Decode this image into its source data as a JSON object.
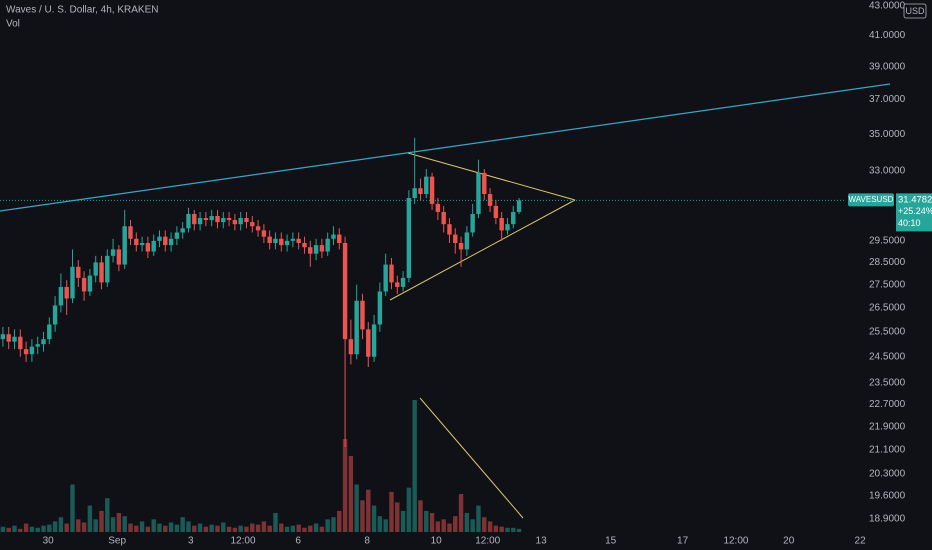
{
  "chart_data": {
    "type": "candlestick",
    "title": "Waves / U. S. Dollar, 4h, KRAKEN",
    "volume_label": "Vol",
    "currency": "USD",
    "symbol": "WAVESUSD",
    "change_label": "+25.24%",
    "countdown": "40:10",
    "log_scale": true,
    "grid": false,
    "up_color": "#26a69a",
    "down_color": "#ef5350",
    "ylim": [
      18.5,
      43.4
    ],
    "yticks": [
      {
        "value": 43,
        "label": "43.0000"
      },
      {
        "value": 41,
        "label": "41.0000"
      },
      {
        "value": 39,
        "label": "39.0000"
      },
      {
        "value": 37,
        "label": "37.0000"
      },
      {
        "value": 35,
        "label": "35.0000"
      },
      {
        "value": 33,
        "label": "33.0000"
      },
      {
        "value": 29.5,
        "label": "29.5000"
      },
      {
        "value": 28.5,
        "label": "28.5000"
      },
      {
        "value": 27.5,
        "label": "27.5000"
      },
      {
        "value": 26.5,
        "label": "26.5000"
      },
      {
        "value": 25.5,
        "label": "25.5000"
      },
      {
        "value": 24.5,
        "label": "24.5000"
      },
      {
        "value": 23.5,
        "label": "23.5000"
      },
      {
        "value": 22.7,
        "label": "22.7000"
      },
      {
        "value": 21.9,
        "label": "21.9000"
      },
      {
        "value": 21.1,
        "label": "21.1000"
      },
      {
        "value": 20.3,
        "label": "20.3000"
      },
      {
        "value": 19.6,
        "label": "19.6000"
      },
      {
        "value": 18.9,
        "label": "18.9000"
      }
    ],
    "xlim": [
      -0.5,
      145.2
    ],
    "xticks": [
      {
        "value": 7.8,
        "label": "30"
      },
      {
        "value": 19.7,
        "label": "Sep"
      },
      {
        "value": 32.4,
        "label": "3"
      },
      {
        "value": 41.4,
        "label": "12:00"
      },
      {
        "value": 50.9,
        "label": "6"
      },
      {
        "value": 62.8,
        "label": "8"
      },
      {
        "value": 74.7,
        "label": "10"
      },
      {
        "value": 83.6,
        "label": "12:00"
      },
      {
        "value": 92.8,
        "label": "13"
      },
      {
        "value": 104.8,
        "label": "15"
      },
      {
        "value": 117.2,
        "label": "17"
      },
      {
        "value": 126.4,
        "label": "12:00"
      },
      {
        "value": 135.5,
        "label": "20"
      },
      {
        "value": 147.8,
        "label": "22"
      }
    ],
    "open": [
      25.2,
      25.4,
      25.1,
      25.3,
      24.8,
      24.6,
      24.9,
      25.0,
      25.2,
      25.8,
      26.6,
      27.4,
      26.9,
      28.3,
      27.8,
      27.2,
      27.9,
      28.5,
      27.6,
      28.8,
      29.1,
      28.4,
      30.2,
      29.6,
      29.3,
      29.4,
      29.0,
      29.5,
      29.7,
      29.3,
      29.6,
      29.9,
      30.1,
      30.8,
      30.3,
      30.6,
      30.5,
      30.7,
      30.4,
      30.6,
      30.5,
      30.3,
      30.6,
      30.4,
      30.2,
      30.0,
      29.7,
      29.4,
      29.6,
      29.3,
      29.5,
      29.6,
      29.4,
      29.2,
      28.9,
      29.3,
      29.0,
      29.6,
      29.8,
      29.4,
      25.2,
      24.6,
      26.8,
      25.6,
      24.5,
      25.8,
      27.2,
      28.4,
      27.6,
      27.4,
      27.8,
      31.6,
      32.1,
      31.8,
      32.7,
      31.3,
      30.9,
      30.3,
      29.8,
      29.4,
      29.1,
      29.9,
      30.8,
      32.9,
      31.8,
      31.2,
      30.6,
      30.0,
      30.3,
      30.9
    ],
    "high": [
      25.7,
      25.7,
      25.6,
      25.6,
      25.1,
      25.2,
      25.3,
      25.5,
      26.1,
      27.0,
      28.0,
      27.7,
      29.1,
      28.6,
      28.1,
      28.2,
      28.8,
      28.8,
      29.1,
      29.6,
      29.3,
      31.0,
      30.5,
      29.9,
      29.7,
      29.7,
      29.8,
      30.0,
      30.0,
      29.9,
      30.2,
      30.4,
      31.1,
      31.0,
      30.9,
      30.9,
      31.0,
      31.0,
      30.9,
      30.9,
      30.8,
      30.9,
      30.9,
      30.7,
      30.5,
      30.3,
      30.0,
      29.9,
      29.9,
      29.8,
      29.9,
      29.9,
      29.7,
      29.5,
      29.6,
      29.6,
      29.9,
      30.2,
      30.1,
      29.7,
      26.0,
      27.5,
      27.1,
      25.9,
      26.2,
      27.6,
      28.9,
      28.7,
      27.9,
      28.1,
      32.0,
      34.8,
      32.6,
      33.1,
      32.9,
      31.6,
      31.2,
      30.6,
      30.1,
      29.7,
      30.2,
      31.3,
      33.6,
      33.1,
      32.1,
      31.5,
      30.9,
      30.6,
      31.2,
      31.6
    ],
    "low": [
      24.9,
      24.8,
      24.8,
      24.5,
      24.3,
      24.3,
      24.6,
      24.7,
      25.0,
      25.5,
      26.3,
      26.2,
      26.7,
      27.4,
      26.8,
      27.0,
      27.6,
      27.3,
      27.4,
      28.5,
      28.1,
      28.2,
      29.3,
      29.0,
      29.0,
      28.7,
      28.8,
      29.2,
      29.0,
      29.0,
      29.3,
      29.6,
      29.9,
      30.0,
      30.0,
      30.2,
      30.2,
      30.1,
      30.1,
      30.2,
      30.0,
      30.0,
      30.1,
      29.9,
      29.7,
      29.4,
      29.1,
      29.1,
      29.0,
      29.0,
      29.2,
      29.1,
      28.9,
      28.3,
      28.6,
      28.7,
      28.8,
      29.3,
      29.1,
      21.2,
      24.2,
      24.4,
      25.2,
      24.1,
      24.3,
      25.5,
      27.0,
      27.3,
      27.1,
      27.2,
      27.6,
      31.3,
      31.5,
      31.6,
      31.0,
      30.5,
      29.9,
      29.4,
      28.9,
      28.3,
      28.8,
      29.7,
      30.6,
      31.5,
      30.9,
      30.3,
      29.5,
      29.8,
      30.1,
      30.8
    ],
    "close": [
      25.4,
      25.1,
      25.3,
      24.8,
      24.6,
      24.9,
      25.0,
      25.2,
      25.8,
      26.6,
      27.4,
      26.9,
      28.3,
      27.8,
      27.2,
      27.9,
      28.5,
      27.6,
      28.8,
      29.1,
      28.4,
      30.2,
      29.6,
      29.3,
      29.4,
      29.0,
      29.5,
      29.7,
      29.3,
      29.6,
      29.9,
      30.1,
      30.8,
      30.3,
      30.6,
      30.5,
      30.7,
      30.4,
      30.6,
      30.5,
      30.3,
      30.6,
      30.4,
      30.2,
      30.0,
      29.7,
      29.4,
      29.6,
      29.3,
      29.5,
      29.6,
      29.4,
      29.2,
      28.9,
      29.3,
      29.0,
      29.6,
      29.8,
      29.4,
      25.2,
      24.6,
      26.8,
      25.6,
      24.5,
      25.8,
      27.2,
      28.4,
      27.6,
      27.4,
      27.8,
      31.6,
      32.1,
      31.8,
      32.7,
      31.3,
      30.9,
      30.3,
      29.8,
      29.4,
      29.1,
      29.9,
      30.8,
      32.9,
      31.8,
      31.2,
      30.6,
      30.0,
      30.3,
      30.9,
      31.4782
    ],
    "volume": [
      5,
      4,
      6,
      3,
      8,
      5,
      4,
      6,
      7,
      10,
      14,
      8,
      45,
      12,
      9,
      25,
      12,
      20,
      32,
      14,
      18,
      15,
      8,
      6,
      10,
      5,
      12,
      8,
      6,
      9,
      7,
      14,
      10,
      6,
      8,
      5,
      7,
      6,
      9,
      5,
      4,
      6,
      5,
      8,
      7,
      10,
      6,
      18,
      8,
      5,
      6,
      7,
      4,
      6,
      8,
      5,
      12,
      14,
      20,
      88,
      72,
      45,
      30,
      40,
      25,
      15,
      12,
      38,
      28,
      20,
      42,
      125,
      30,
      20,
      18,
      10,
      12,
      8,
      15,
      36,
      18,
      12,
      25,
      14,
      10,
      6,
      5,
      4,
      4,
      3
    ]
  }
}
